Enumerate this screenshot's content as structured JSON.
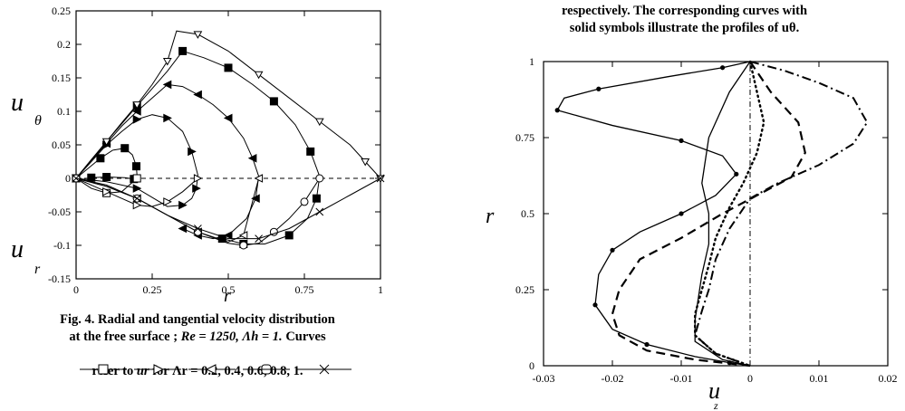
{
  "left_caption": {
    "line1": "Fig. 4. Radial and tangential velocity distribution",
    "line2_prefix": "at the free surface ; ",
    "line2_math": "Re = 1250,  Λh = 1.",
    "line2_suffix": " Curves",
    "line4_prefix": "refer to ",
    "line4_math": "ur",
    "line4_mid": " for ",
    "line4_values": "Λr = 0.2, 0.4, 0.6, 0.8, 1."
  },
  "right_caption": {
    "line1": "respectively. The corresponding curves with",
    "line2": "solid symbols illustrate the profiles of uθ."
  },
  "chart_data": [
    {
      "type": "line",
      "xlabel": "r",
      "ylabel_top": "u θ",
      "ylabel_bottom": "u r",
      "xlim": [
        0,
        1
      ],
      "ylim": [
        -0.15,
        0.25
      ],
      "xticks": [
        "0",
        "0.25",
        "0.5",
        "0.75",
        "1"
      ],
      "yticks": [
        "0.25",
        "0.2",
        "0.15",
        "0.1",
        "0.05",
        "0",
        "-0.05",
        "-0.1",
        "-0.15"
      ],
      "series_tangential": [
        {
          "name": "Λr = 0.2",
          "marker": "square-filled",
          "x": [
            0,
            0.04,
            0.08,
            0.12,
            0.16,
            0.185,
            0.198,
            0.2,
            0.19,
            0.16,
            0.1,
            0.05
          ],
          "y": [
            0,
            0.015,
            0.03,
            0.042,
            0.045,
            0.035,
            0.018,
            0.005,
            -0.001,
            0.001,
            0.002,
            0.001
          ]
        },
        {
          "name": "Λr = 0.4",
          "marker": "triangle-right-filled",
          "x": [
            0,
            0.05,
            0.1,
            0.15,
            0.2,
            0.25,
            0.3,
            0.35,
            0.38,
            0.4,
            0.395,
            0.38,
            0.35,
            0.3,
            0.2,
            0.1,
            0
          ],
          "y": [
            0,
            0.025,
            0.05,
            0.07,
            0.088,
            0.095,
            0.09,
            0.07,
            0.04,
            0.005,
            -0.015,
            -0.03,
            -0.04,
            -0.042,
            -0.015,
            -0.005,
            0
          ]
        },
        {
          "name": "Λr = 0.6",
          "marker": "triangle-left-filled",
          "x": [
            0,
            0.05,
            0.1,
            0.15,
            0.2,
            0.25,
            0.3,
            0.35,
            0.4,
            0.45,
            0.5,
            0.55,
            0.58,
            0.6,
            0.59,
            0.56,
            0.5,
            0.45,
            0.4,
            0.35
          ],
          "y": [
            0,
            0.027,
            0.052,
            0.078,
            0.1,
            0.12,
            0.14,
            0.137,
            0.125,
            0.11,
            0.09,
            0.06,
            0.03,
            0.003,
            -0.03,
            -0.06,
            -0.085,
            -0.09,
            -0.085,
            -0.075
          ]
        },
        {
          "name": "Λr = 0.8",
          "marker": "circle-filled",
          "x": [
            0,
            0.1,
            0.2,
            0.3,
            0.35,
            0.42,
            0.5,
            0.58,
            0.65,
            0.72,
            0.77,
            0.8,
            0.79,
            0.76,
            0.7,
            0.62,
            0.55,
            0.48
          ],
          "y": [
            0,
            0.055,
            0.108,
            0.16,
            0.19,
            0.18,
            0.165,
            0.14,
            0.115,
            0.08,
            0.04,
            0.003,
            -0.03,
            -0.06,
            -0.085,
            -0.098,
            -0.098,
            -0.09
          ]
        },
        {
          "name": "Λr = 1",
          "marker": "triangle-down-open",
          "x": [
            0,
            0.05,
            0.1,
            0.15,
            0.2,
            0.25,
            0.3,
            0.33,
            0.4,
            0.5,
            0.6,
            0.7,
            0.8,
            0.9,
            0.95,
            1
          ],
          "y": [
            0,
            0.028,
            0.055,
            0.083,
            0.11,
            0.14,
            0.175,
            0.22,
            0.215,
            0.19,
            0.155,
            0.12,
            0.085,
            0.05,
            0.025,
            0
          ]
        }
      ],
      "series_radial": [
        {
          "name": "Λr = 0.2",
          "marker": "square-open",
          "x": [
            0,
            0.05,
            0.1,
            0.15,
            0.2
          ],
          "y": [
            0,
            -0.015,
            -0.022,
            -0.02,
            0
          ]
        },
        {
          "name": "Λr = 0.4",
          "marker": "triangle-right-open",
          "x": [
            0,
            0.05,
            0.1,
            0.15,
            0.2,
            0.25,
            0.3,
            0.35,
            0.4
          ],
          "y": [
            0,
            -0.01,
            -0.02,
            -0.03,
            -0.04,
            -0.042,
            -0.035,
            -0.02,
            0
          ]
        },
        {
          "name": "Λr = 0.6",
          "marker": "triangle-left-open",
          "x": [
            0,
            0.1,
            0.2,
            0.3,
            0.4,
            0.5,
            0.55,
            0.6
          ],
          "y": [
            0,
            -0.01,
            -0.03,
            -0.055,
            -0.08,
            -0.095,
            -0.085,
            0
          ]
        },
        {
          "name": "Λr = 0.8",
          "marker": "circle-open",
          "x": [
            0,
            0.1,
            0.2,
            0.3,
            0.4,
            0.5,
            0.55,
            0.6,
            0.65,
            0.7,
            0.75,
            0.8
          ],
          "y": [
            0,
            -0.012,
            -0.03,
            -0.055,
            -0.08,
            -0.097,
            -0.1,
            -0.097,
            -0.08,
            -0.06,
            -0.035,
            0
          ]
        },
        {
          "name": "Λr = 1",
          "marker": "x",
          "x": [
            0,
            0.1,
            0.2,
            0.3,
            0.4,
            0.5,
            0.6,
            0.7,
            0.8,
            0.9,
            1
          ],
          "y": [
            0,
            -0.012,
            -0.03,
            -0.055,
            -0.075,
            -0.09,
            -0.09,
            -0.075,
            -0.05,
            -0.025,
            0
          ]
        }
      ]
    },
    {
      "type": "line",
      "xlabel": "u z",
      "ylabel": "r",
      "xlim": [
        -0.03,
        0.02
      ],
      "ylim": [
        0,
        1
      ],
      "xticks": [
        "-0.03",
        "-0.02",
        "-0.01",
        "0",
        "0.01",
        "0.02"
      ],
      "yticks": [
        "1",
        "0.75",
        "0.5",
        "0.25",
        "0"
      ],
      "series": [
        {
          "name": "solid-dots",
          "style": "solid",
          "x": [
            0,
            -0.004,
            -0.012,
            -0.022,
            -0.027,
            -0.028,
            -0.02,
            -0.01,
            -0.004,
            -0.002,
            -0.005,
            -0.01,
            -0.016,
            -0.02,
            -0.022,
            -0.0225,
            -0.02,
            -0.015,
            -0.008,
            -0.003,
            0
          ],
          "y": [
            1,
            0.98,
            0.95,
            0.91,
            0.88,
            0.84,
            0.79,
            0.74,
            0.69,
            0.63,
            0.56,
            0.5,
            0.44,
            0.38,
            0.3,
            0.2,
            0.12,
            0.07,
            0.03,
            0.01,
            0
          ]
        },
        {
          "name": "solid-thin",
          "style": "solid",
          "x": [
            0,
            -0.003,
            -0.006,
            -0.007,
            -0.006,
            -0.006,
            -0.007,
            -0.008,
            -0.008,
            -0.004,
            0
          ],
          "y": [
            1,
            0.9,
            0.75,
            0.6,
            0.5,
            0.4,
            0.3,
            0.15,
            0.08,
            0.02,
            0
          ]
        },
        {
          "name": "dashed",
          "style": "dashed",
          "x": [
            0,
            0.003,
            0.007,
            0.008,
            0.006,
            0.001,
            -0.004,
            -0.01,
            -0.016,
            -0.019,
            -0.02,
            -0.019,
            -0.015,
            -0.008,
            0
          ],
          "y": [
            1,
            0.9,
            0.8,
            0.7,
            0.62,
            0.56,
            0.5,
            0.42,
            0.35,
            0.25,
            0.17,
            0.1,
            0.05,
            0.02,
            0
          ]
        },
        {
          "name": "dotted",
          "style": "dotted",
          "x": [
            0,
            0.001,
            0.002,
            0.001,
            -0.001,
            -0.003,
            -0.005,
            -0.006,
            -0.007,
            -0.008,
            -0.008,
            -0.005,
            0
          ],
          "y": [
            1,
            0.9,
            0.8,
            0.7,
            0.6,
            0.52,
            0.42,
            0.33,
            0.25,
            0.17,
            0.1,
            0.04,
            0
          ]
        },
        {
          "name": "dash-dot",
          "style": "dashdot",
          "x": [
            0,
            0.005,
            0.01,
            0.015,
            0.017,
            0.015,
            0.01,
            0.004,
            0,
            -0.003,
            -0.005,
            -0.006,
            -0.007,
            -0.008,
            -0.005,
            0
          ],
          "y": [
            1,
            0.97,
            0.93,
            0.88,
            0.8,
            0.73,
            0.66,
            0.6,
            0.55,
            0.45,
            0.35,
            0.25,
            0.18,
            0.1,
            0.04,
            0
          ]
        },
        {
          "name": "zero-line",
          "style": "dashdot-thin",
          "x": [
            0,
            0
          ],
          "y": [
            0,
            1
          ]
        }
      ]
    }
  ]
}
